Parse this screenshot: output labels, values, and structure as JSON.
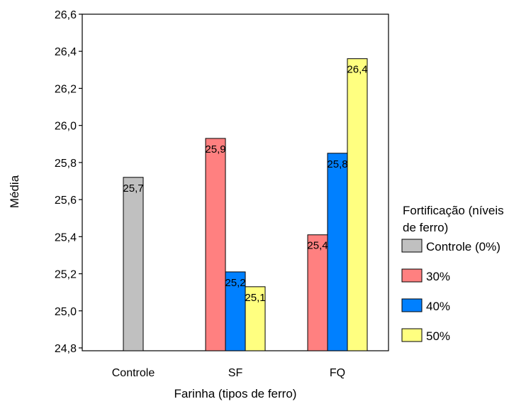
{
  "chart_data": {
    "type": "bar",
    "title": "",
    "xlabel": "Farinha (tipos de ferro)",
    "ylabel": "Média",
    "ylim": [
      24.8,
      26.6
    ],
    "yticks": [
      "24,8",
      "25,0",
      "25,2",
      "25,4",
      "25,6",
      "25,8",
      "26,0",
      "26,2",
      "26,4",
      "26,6"
    ],
    "categories": [
      "Controle",
      "SF",
      "FQ"
    ],
    "legend_title": "Fortificação (níveis de ferro)",
    "legend_position": "right",
    "series": [
      {
        "name": "Controle (0%)",
        "color": "#c0c0c0",
        "values": [
          25.72,
          null,
          null
        ],
        "labels": [
          "25,7",
          "",
          ""
        ]
      },
      {
        "name": "30%",
        "color": "#ff8080",
        "values": [
          null,
          25.93,
          25.41
        ],
        "labels": [
          "",
          "25,9",
          "25,4"
        ]
      },
      {
        "name": "40%",
        "color": "#0080ff",
        "values": [
          null,
          25.21,
          25.85
        ],
        "labels": [
          "",
          "25,2",
          "25,8"
        ]
      },
      {
        "name": "50%",
        "color": "#ffff80",
        "values": [
          null,
          25.13,
          26.36
        ],
        "labels": [
          "",
          "25,1",
          "26,4"
        ]
      }
    ]
  }
}
